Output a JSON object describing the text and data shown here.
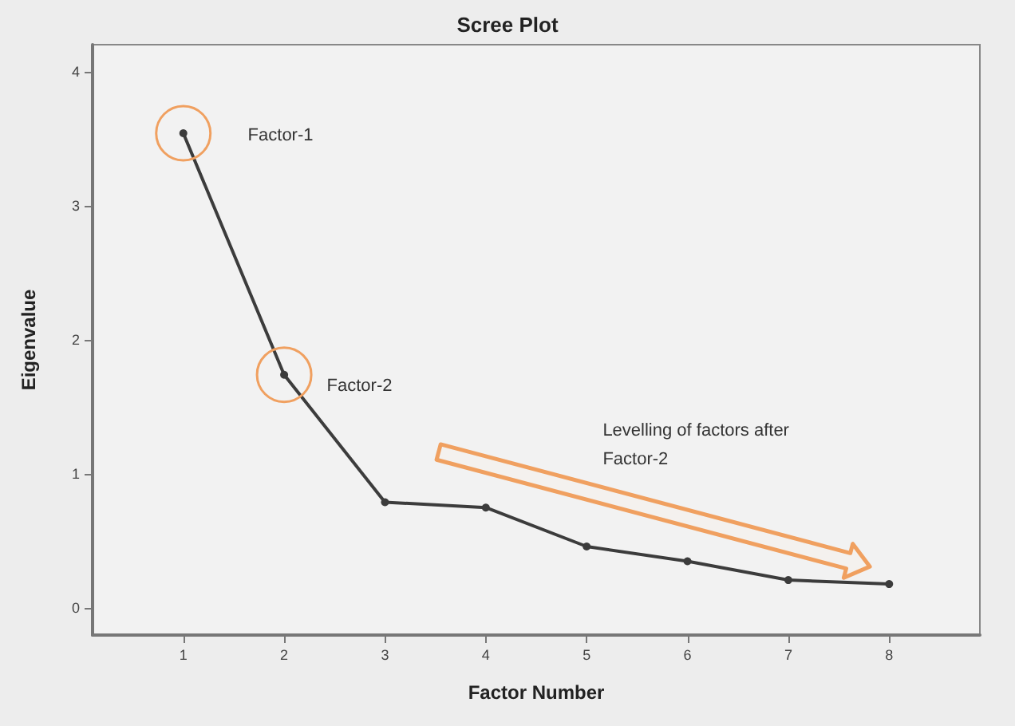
{
  "chart_data": {
    "type": "line",
    "title": "Scree Plot",
    "xlabel": "Factor Number",
    "ylabel": "Eigenvalue",
    "x": [
      1,
      2,
      3,
      4,
      5,
      6,
      7,
      8
    ],
    "values": [
      3.54,
      1.74,
      0.79,
      0.75,
      0.46,
      0.35,
      0.21,
      0.18
    ],
    "color": "#3c3c3c",
    "marker": "circle",
    "line_style": "solid",
    "grid": false,
    "xlim": [
      0.1,
      8.9
    ],
    "xticks": [
      1,
      2,
      3,
      4,
      5,
      6,
      7,
      8
    ],
    "ylim": [
      -0.2,
      4.2
    ],
    "yticks": [
      0,
      1,
      2,
      3,
      4
    ],
    "annotations": [
      "Factor-1",
      "Factor-2",
      "Levelling of factors after Factor-2"
    ]
  }
}
